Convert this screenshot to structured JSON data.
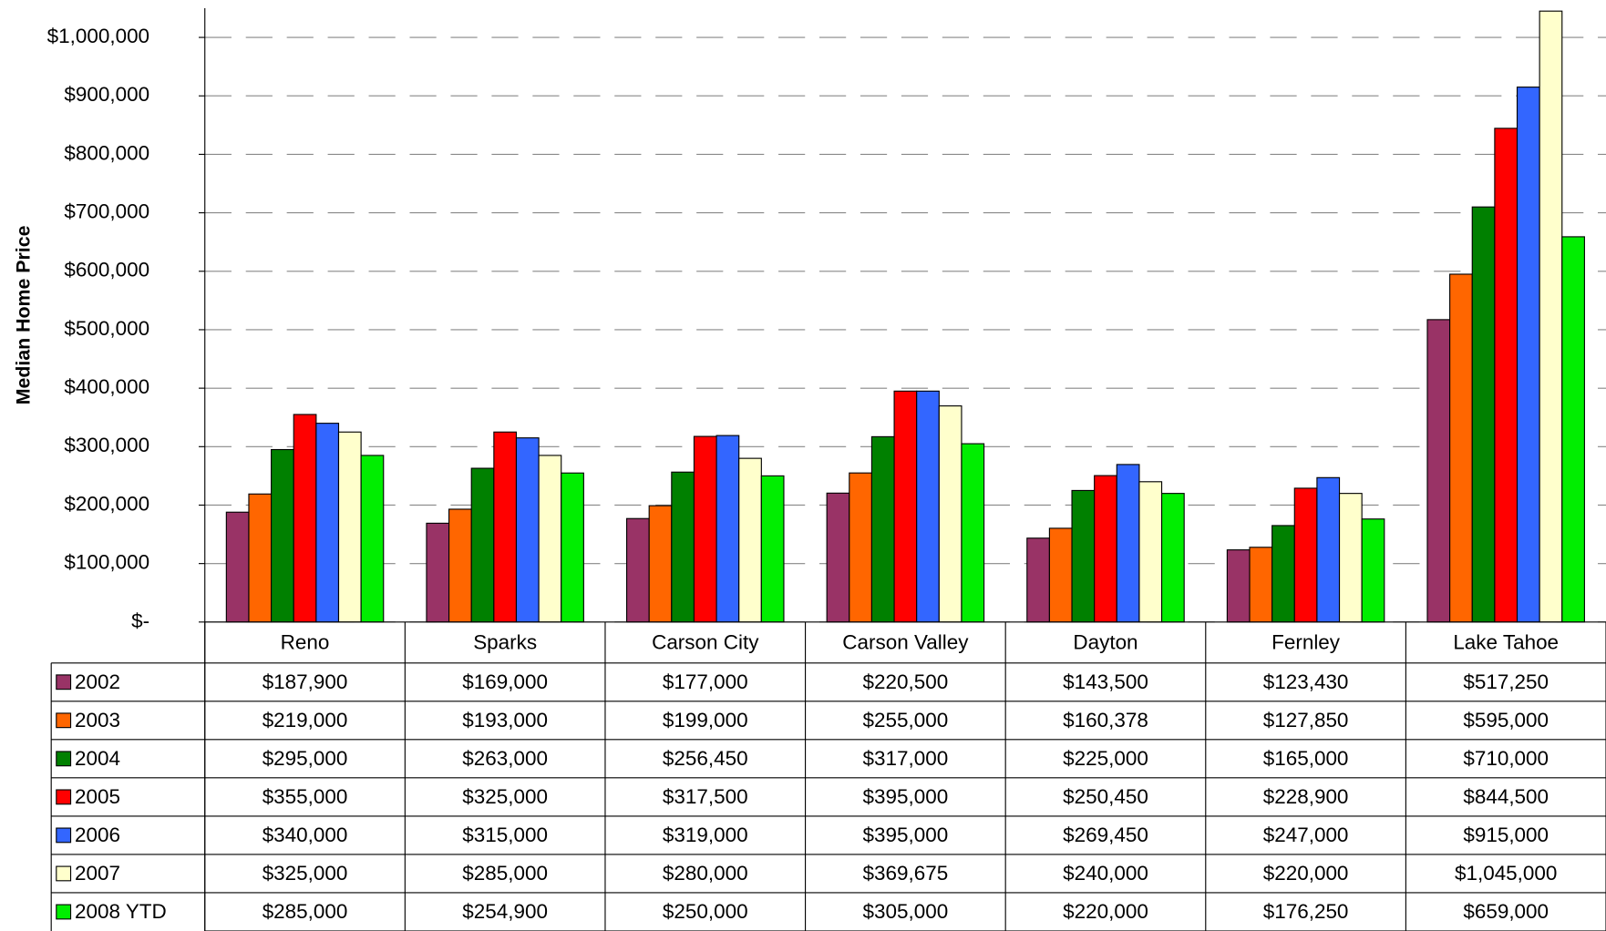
{
  "chart_data": {
    "type": "bar",
    "y_label": "Median Home Price",
    "categories": [
      "Reno",
      "Sparks",
      "Carson City",
      "Carson Valley",
      "Dayton",
      "Fernley",
      "Lake Tahoe"
    ],
    "ylim": [
      0,
      1050000
    ],
    "yticks": [
      {
        "value": 0,
        "label": "$-"
      },
      {
        "value": 100000,
        "label": "$100,000"
      },
      {
        "value": 200000,
        "label": "$200,000"
      },
      {
        "value": 300000,
        "label": "$300,000"
      },
      {
        "value": 400000,
        "label": "$400,000"
      },
      {
        "value": 500000,
        "label": "$500,000"
      },
      {
        "value": 600000,
        "label": "$600,000"
      },
      {
        "value": 700000,
        "label": "$700,000"
      },
      {
        "value": 800000,
        "label": "$800,000"
      },
      {
        "value": 900000,
        "label": "$900,000"
      },
      {
        "value": 1000000,
        "label": "$1,000,000"
      }
    ],
    "grid": true,
    "series": [
      {
        "name": "2002",
        "color": "#993366",
        "values": [
          187900,
          169000,
          177000,
          220500,
          143500,
          123430,
          517250
        ],
        "value_labels": [
          "$187,900",
          "$169,000",
          "$177,000",
          "$220,500",
          "$143,500",
          "$123,430",
          "$517,250"
        ]
      },
      {
        "name": "2003",
        "color": "#ff6600",
        "values": [
          219000,
          193000,
          199000,
          255000,
          160378,
          127850,
          595000
        ],
        "value_labels": [
          "$219,000",
          "$193,000",
          "$199,000",
          "$255,000",
          "$160,378",
          "$127,850",
          "$595,000"
        ]
      },
      {
        "name": "2004",
        "color": "#008000",
        "values": [
          295000,
          263000,
          256450,
          317000,
          225000,
          165000,
          710000
        ],
        "value_labels": [
          "$295,000",
          "$263,000",
          "$256,450",
          "$317,000",
          "$225,000",
          "$165,000",
          "$710,000"
        ]
      },
      {
        "name": "2005",
        "color": "#ff0000",
        "values": [
          355000,
          325000,
          317500,
          395000,
          250450,
          228900,
          844500
        ],
        "value_labels": [
          "$355,000",
          "$325,000",
          "$317,500",
          "$395,000",
          "$250,450",
          "$228,900",
          "$844,500"
        ]
      },
      {
        "name": "2006",
        "color": "#3366ff",
        "values": [
          340000,
          315000,
          319000,
          395000,
          269450,
          247000,
          915000
        ],
        "value_labels": [
          "$340,000",
          "$315,000",
          "$319,000",
          "$395,000",
          "$269,450",
          "$247,000",
          "$915,000"
        ]
      },
      {
        "name": "2007",
        "color": "#ffffcc",
        "values": [
          325000,
          285000,
          280000,
          369675,
          240000,
          220000,
          1045000
        ],
        "value_labels": [
          "$325,000",
          "$285,000",
          "$280,000",
          "$369,675",
          "$240,000",
          "$220,000",
          "$1,045,000"
        ]
      },
      {
        "name": "2008 YTD",
        "color": "#00ee00",
        "values": [
          285000,
          254900,
          250000,
          305000,
          220000,
          176250,
          659000
        ],
        "value_labels": [
          "$285,000",
          "$254,900",
          "$250,000",
          "$305,000",
          "$220,000",
          "$176,250",
          "$659,000"
        ]
      }
    ]
  }
}
